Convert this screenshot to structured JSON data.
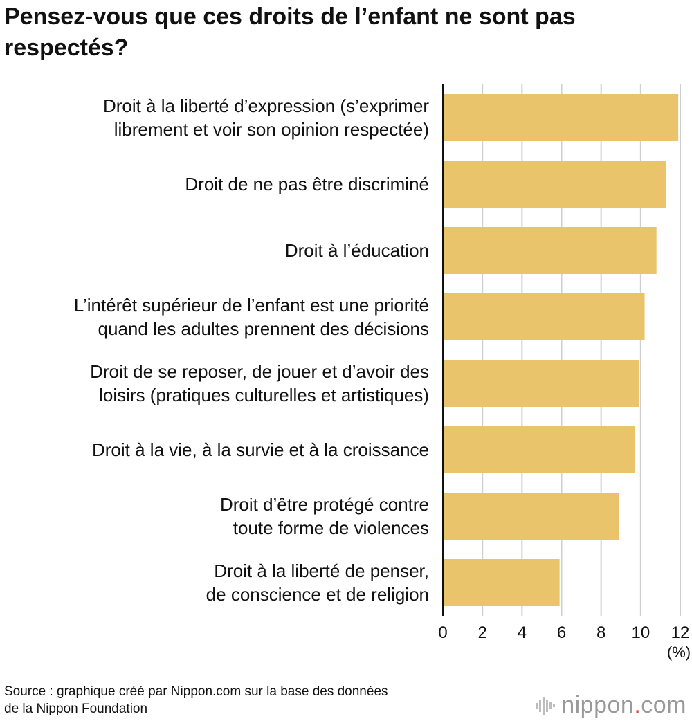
{
  "chart_data": {
    "type": "bar",
    "orientation": "horizontal",
    "title": "Pensez-vous que ces droits de l’enfant ne sont pas respectés?",
    "categories": [
      [
        "Droit à la liberté d’expression (s’exprimer",
        "librement et voir son opinion respectée)"
      ],
      [
        "Droit de ne pas être discriminé"
      ],
      [
        "Droit à l’éducation"
      ],
      [
        "L’intérêt supérieur de l’enfant est une priorité",
        "quand les adultes prennent des décisions"
      ],
      [
        "Droit de se reposer, de jouer et d’avoir des",
        "loisirs (pratiques culturelles et artistiques)"
      ],
      [
        "Droit à la vie, à la survie et à la croissance"
      ],
      [
        "Droit d’être protégé contre",
        "toute forme de violences"
      ],
      [
        "Droit à la liberté de penser,",
        "de conscience et de religion"
      ]
    ],
    "values": [
      11.9,
      11.3,
      10.8,
      10.2,
      9.9,
      9.7,
      8.9,
      5.9
    ],
    "xlim": [
      0,
      12
    ],
    "xticks": [
      "0",
      "2",
      "4",
      "6",
      "8",
      "10",
      "12"
    ],
    "xlabel": "(%)",
    "bar_color": "#e9c46a",
    "grid": true
  },
  "footer": {
    "source_line1": "Source : graphique créé par Nippon.com sur la base des données",
    "source_line2": "de la Nippon Foundation",
    "logo_main": "nippon",
    "logo_dot": ".",
    "logo_suffix": "com",
    "logo_icon": "soundwave-icon"
  }
}
